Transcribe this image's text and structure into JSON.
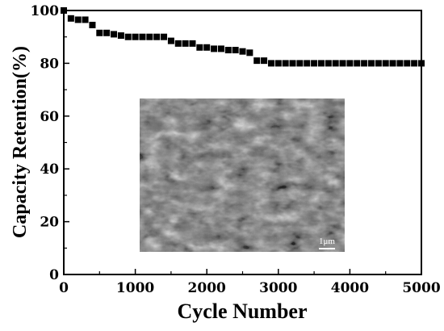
{
  "chart_data": {
    "type": "scatter",
    "title": "",
    "xlabel": "Cycle Number",
    "ylabel": "Capacity Retention(%)",
    "xlim": [
      0,
      5000
    ],
    "ylim": [
      0,
      100
    ],
    "xticks": [
      0,
      1000,
      2000,
      3000,
      4000,
      5000
    ],
    "yticks": [
      0,
      20,
      40,
      60,
      80,
      100
    ],
    "grid": false,
    "legend": "none",
    "marker": "square",
    "marker_color": "#000000",
    "series": [
      {
        "x": [
          0,
          100,
          200,
          300,
          400,
          500,
          600,
          700,
          800,
          900,
          1000,
          1100,
          1200,
          1300,
          1400,
          1500,
          1600,
          1700,
          1800,
          1900,
          2000,
          2100,
          2200,
          2300,
          2400,
          2500,
          2600,
          2700,
          2800,
          2900,
          3000,
          3100,
          3200,
          3300,
          3400,
          3500,
          3600,
          3700,
          3800,
          3900,
          4000,
          4100,
          4200,
          4300,
          4400,
          4500,
          4600,
          4700,
          4800,
          4900,
          5000
        ],
        "y": [
          100,
          97,
          96.5,
          96.5,
          94.5,
          91.5,
          91.5,
          91,
          90.5,
          90,
          90,
          90,
          90,
          90,
          90,
          88.5,
          87.5,
          87.5,
          87.5,
          86,
          86,
          85.5,
          85.5,
          85,
          85,
          84.5,
          84,
          81,
          81,
          80,
          80,
          80,
          80,
          80,
          80,
          80,
          80,
          80,
          80,
          80,
          80,
          80,
          80,
          80,
          80,
          80,
          80,
          80,
          80,
          80,
          80
        ]
      }
    ],
    "inset": {
      "type": "SEM micrograph",
      "scale_bar_label": "1μm"
    }
  }
}
